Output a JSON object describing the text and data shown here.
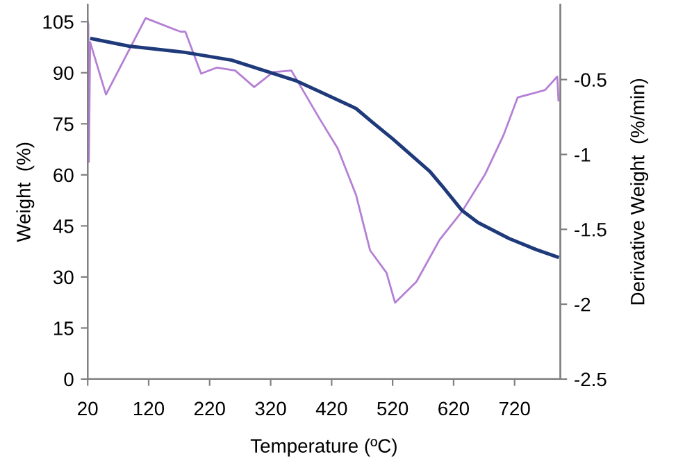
{
  "chart_data": {
    "type": "line",
    "xlabel": "Temperature (ºC)",
    "ylabel": "Weight  (%)",
    "y2label": "Derivative Weight  (%/min)",
    "xlim": [
      20,
      795
    ],
    "xticks": [
      20,
      120,
      220,
      320,
      420,
      520,
      620,
      720
    ],
    "ylim": [
      0,
      110
    ],
    "yticks": [
      0,
      15,
      30,
      45,
      60,
      75,
      90,
      105
    ],
    "y2lim": [
      -2.5,
      0
    ],
    "y2ticks": [
      -2.5,
      -2,
      -1.5,
      -1,
      -0.5
    ],
    "grid": false,
    "marker": "none",
    "line_style": "solid",
    "series": [
      {
        "color": "#1f3a7a",
        "x": [
          27,
          88,
          179,
          256,
          361,
          400,
          460,
          490,
          520,
          581,
          600,
          634,
          660,
          711,
          756,
          790
        ],
        "values": [
          100,
          97.8,
          96,
          93.7,
          87.7,
          84.5,
          79.5,
          75,
          70.6,
          61,
          57,
          49.5,
          46,
          41.3,
          38,
          35.9
        ]
      },
      {
        "color": "#b57fd4",
        "axis": "y2",
        "x": [
          20,
          21,
          22,
          24,
          50,
          115,
          172,
          180,
          206,
          232,
          262,
          293,
          324,
          354,
          400,
          430,
          460,
          483,
          510,
          524,
          559,
          597,
          634,
          672,
          702,
          725,
          770,
          790,
          792
        ],
        "values": [
          -0.11,
          -0.13,
          -1.05,
          -0.25,
          -0.6,
          -0.09,
          -0.18,
          -0.18,
          -0.46,
          -0.42,
          -0.44,
          -0.55,
          -0.45,
          -0.44,
          -0.76,
          -0.96,
          -1.27,
          -1.64,
          -1.79,
          -1.99,
          -1.85,
          -1.57,
          -1.38,
          -1.13,
          -0.87,
          -0.62,
          -0.57,
          -0.48,
          -0.64
        ]
      }
    ]
  }
}
